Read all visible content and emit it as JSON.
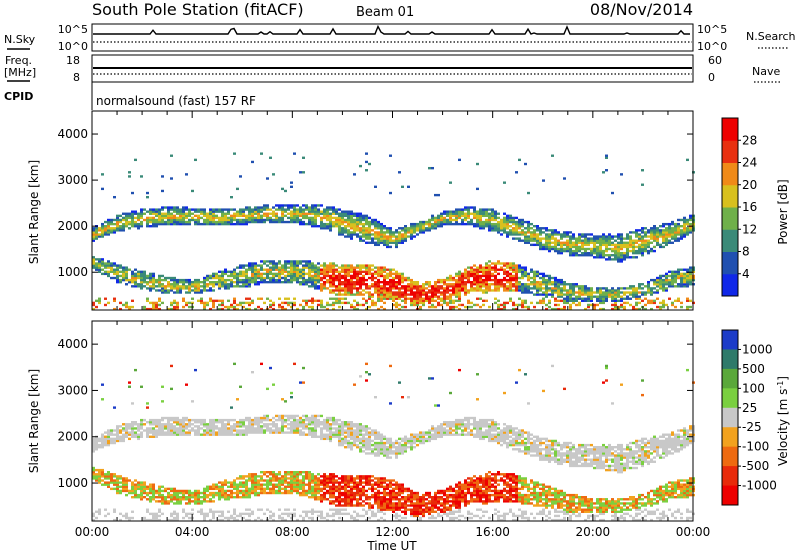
{
  "header": {
    "station": "South Pole Station (fitACF)",
    "beam": "Beam 01",
    "date": "08/Nov/2014"
  },
  "top_panels": {
    "nsky_label": "N.Sky",
    "nsearch_label": "N.Search",
    "freq_label_1": "Freq.",
    "freq_label_2": "[MHz]",
    "nave_label": "Nave",
    "cpid_label": "CPID",
    "cpid_text": "normalsound (fast) 157 RF",
    "noise_left_ticks": [
      "10^5",
      "10^0"
    ],
    "noise_right_ticks": [
      "10^5",
      "10^0"
    ],
    "freq_ticks": [
      "18",
      "8"
    ],
    "nave_ticks": [
      "60",
      "0"
    ]
  },
  "chart_data": [
    {
      "type": "heatmap",
      "title": "",
      "xlabel": "Time UT",
      "ylabel": "Slant Range [km]",
      "xlim": [
        0,
        24
      ],
      "ylim": [
        180,
        4500
      ],
      "x_ticks": [
        "00:00",
        "04:00",
        "08:00",
        "12:00",
        "16:00",
        "20:00",
        "00:00"
      ],
      "y_ticks": [
        "1000",
        "2000",
        "3000",
        "4000"
      ],
      "colorbar_label": "Power [dB]",
      "colorbar_ticks": [
        "4",
        "8",
        "12",
        "16",
        "20",
        "24",
        "28"
      ],
      "colorbar_colors": [
        "#1028e8",
        "#2050b0",
        "#3a8a78",
        "#6fb04a",
        "#d8c01e",
        "#f08a18",
        "#e83010",
        "#ee0000"
      ],
      "bands": [
        {
          "name": "upper",
          "x": [
            0,
            1,
            2,
            3,
            4,
            5,
            6,
            7,
            8,
            9,
            10,
            11,
            12,
            13,
            14,
            15,
            16,
            17,
            18,
            19,
            20,
            21,
            22,
            23,
            24
          ],
          "center_km": [
            1800,
            2050,
            2150,
            2200,
            2180,
            2180,
            2200,
            2250,
            2250,
            2200,
            2050,
            1900,
            1700,
            1950,
            2150,
            2200,
            2100,
            1900,
            1700,
            1600,
            1550,
            1500,
            1650,
            1800,
            2050
          ],
          "half_width_km": [
            150,
            180,
            200,
            200,
            200,
            200,
            180,
            200,
            200,
            250,
            300,
            300,
            200,
            150,
            150,
            200,
            250,
            250,
            250,
            250,
            250,
            300,
            300,
            250,
            200
          ]
        },
        {
          "name": "lower",
          "x": [
            0,
            1,
            2,
            3,
            4,
            5,
            6,
            7,
            8,
            9,
            10,
            11,
            12,
            13,
            14,
            15,
            16,
            17,
            18,
            19,
            20,
            21,
            22,
            23,
            24
          ],
          "center_km": [
            1200,
            950,
            800,
            700,
            650,
            800,
            900,
            1000,
            1000,
            900,
            800,
            800,
            700,
            500,
            600,
            800,
            900,
            850,
            700,
            550,
            500,
            500,
            600,
            800,
            900
          ],
          "half_width_km": [
            150,
            200,
            200,
            180,
            150,
            200,
            250,
            250,
            250,
            300,
            350,
            350,
            350,
            250,
            250,
            300,
            350,
            300,
            250,
            200,
            150,
            150,
            150,
            200,
            200
          ]
        }
      ]
    },
    {
      "type": "heatmap",
      "title": "",
      "xlabel": "Time UT",
      "ylabel": "Slant Range [km]",
      "xlim": [
        0,
        24
      ],
      "ylim": [
        180,
        4500
      ],
      "x_ticks": [
        "00:00",
        "04:00",
        "08:00",
        "12:00",
        "16:00",
        "20:00",
        "00:00"
      ],
      "y_ticks": [
        "1000",
        "2000",
        "3000",
        "4000"
      ],
      "colorbar_label": "Velocity [m s^-1]",
      "colorbar_ticks": [
        "1000",
        "500",
        "100",
        "25",
        "-25",
        "-100",
        "-500",
        "-1000"
      ],
      "colorbar_colors": [
        "#1c3cc8",
        "#2f7a6a",
        "#5aa83a",
        "#7ad040",
        "#c8c8c8",
        "#f2a21e",
        "#ee6a10",
        "#e82a0a",
        "#ee0000"
      ]
    }
  ]
}
